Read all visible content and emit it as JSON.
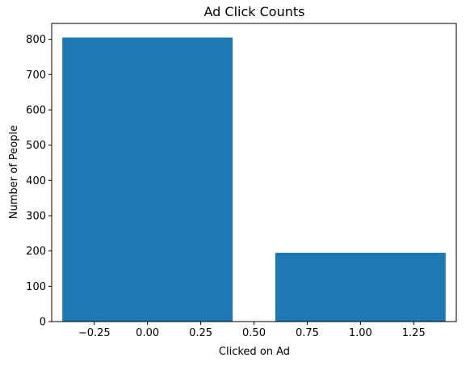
{
  "chart_data": {
    "type": "bar",
    "title": "Ad Click Counts",
    "xlabel": "Clicked on Ad",
    "ylabel": "Number of People",
    "bars": [
      {
        "x": 0,
        "value": 805
      },
      {
        "x": 1,
        "value": 195
      }
    ],
    "bar_width": 0.8,
    "xlim": [
      -0.45,
      1.45
    ],
    "ylim": [
      0,
      845
    ],
    "xticks": [
      -0.25,
      0,
      0.25,
      0.5,
      0.75,
      1,
      1.25
    ],
    "xtick_labels": [
      "−0.25",
      "0.00",
      "0.25",
      "0.50",
      "0.75",
      "1.00",
      "1.25"
    ],
    "yticks": [
      0,
      100,
      200,
      300,
      400,
      500,
      600,
      700,
      800
    ],
    "ytick_labels": [
      "0",
      "100",
      "200",
      "300",
      "400",
      "500",
      "600",
      "700",
      "800"
    ],
    "grid": false,
    "colors": {
      "bar": "#1f77b4",
      "axes": "#000000",
      "background": "#ffffff"
    }
  }
}
